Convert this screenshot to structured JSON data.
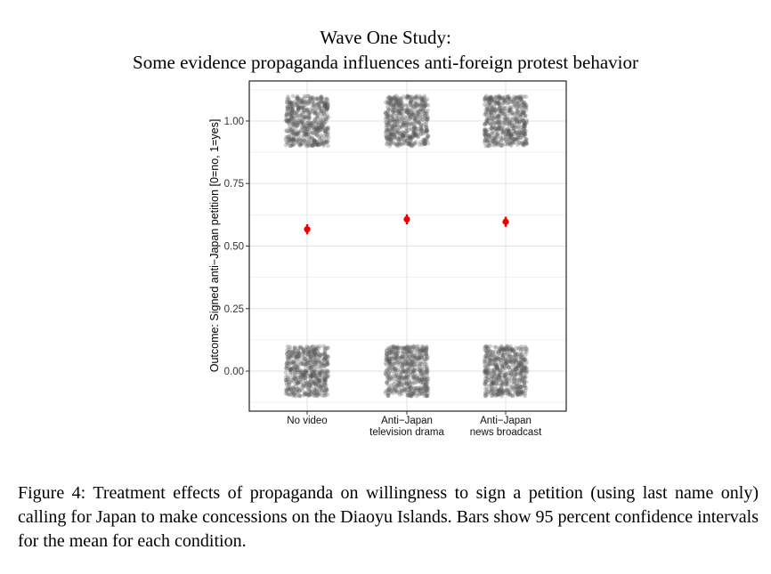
{
  "chart_data": {
    "type": "scatter",
    "title": "Wave One Study:",
    "subtitle": "Some evidence propaganda influences anti-foreign protest behavior",
    "ylabel": "Outcome: Signed anti−Japan petition [0=no, 1=yes]",
    "xlabel": "",
    "categories": [
      {
        "line1": "No video",
        "line2": ""
      },
      {
        "line1": "Anti−Japan",
        "line2": "television drama"
      },
      {
        "line1": "Anti−Japan",
        "line2": "news broadcast"
      }
    ],
    "ylim": [
      -0.16,
      1.16
    ],
    "yticks": [
      "0.00",
      "0.25",
      "0.50",
      "0.75",
      "1.00"
    ],
    "grid": true,
    "jitter": {
      "x_spread": 0.2,
      "y_spread": 0.1,
      "levels": [
        0,
        1
      ],
      "point_color": "#555555"
    },
    "means": [
      0.567,
      0.607,
      0.597
    ],
    "ci_low": [
      0.547,
      0.587,
      0.577
    ],
    "ci_high": [
      0.587,
      0.627,
      0.617
    ],
    "mean_color": "#ee0000"
  },
  "caption": "Figure 4:  Treatment effects of propaganda on willingness to sign a petition (using last name only) calling for Japan to make concessions on the Diaoyu Islands.  Bars show 95 percent confidence intervals for the mean for each condition."
}
